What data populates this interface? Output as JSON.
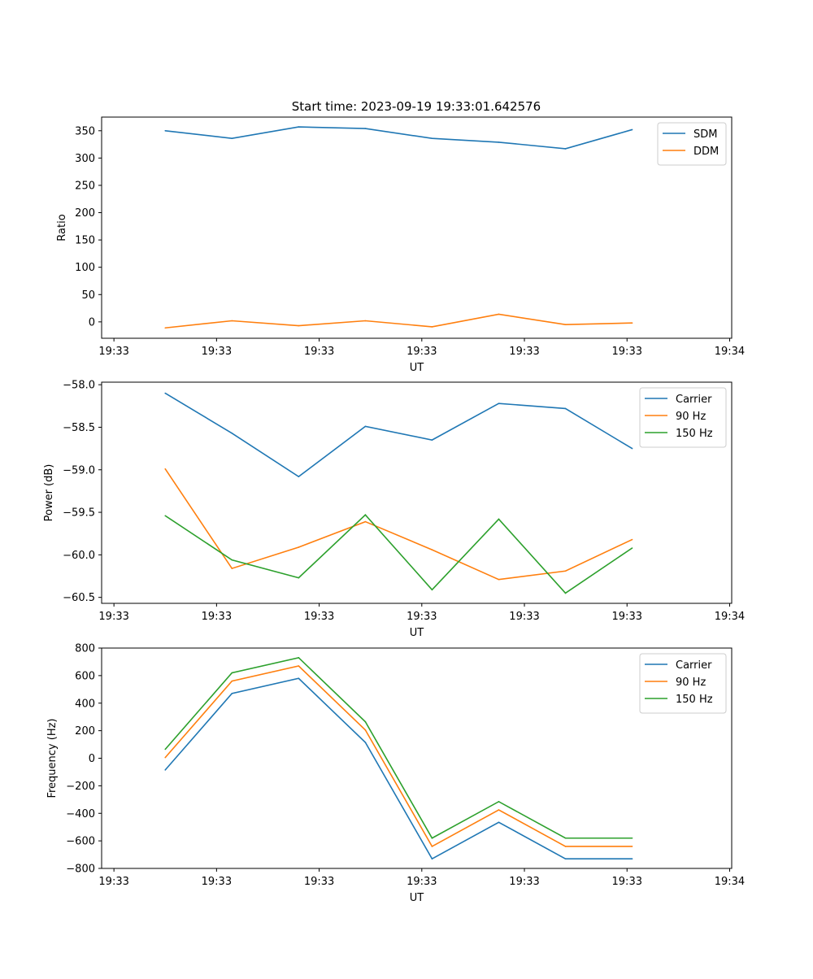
{
  "figure_title": "Start time: 2023-09-19 19:33:01.642576",
  "colors": {
    "blue": "#1f77b4",
    "orange": "#ff7f0e",
    "green": "#2ca02c"
  },
  "chart_data": [
    {
      "type": "line",
      "title": "Start time: 2023-09-19 19:33:01.642576",
      "xlabel": "UT",
      "ylabel": "Ratio",
      "x_ticks": [
        "19:33",
        "19:33",
        "19:33",
        "19:33",
        "19:33",
        "19:33",
        "19:34"
      ],
      "x_tick_values": [
        0,
        1,
        2,
        3,
        4,
        5,
        6
      ],
      "xlim": [
        -0.12,
        6.02
      ],
      "ylim": [
        -30,
        375
      ],
      "y_ticks": [
        0,
        50,
        100,
        150,
        200,
        250,
        300,
        350
      ],
      "legend_position": "top-right",
      "x": [
        0.5,
        1.15,
        1.8,
        2.45,
        3.1,
        3.75,
        4.4,
        5.05
      ],
      "series": [
        {
          "name": "SDM",
          "color": "#1f77b4",
          "values": [
            350,
            336,
            357,
            354,
            336,
            329,
            317,
            352
          ]
        },
        {
          "name": "DDM",
          "color": "#ff7f0e",
          "values": [
            -11,
            2,
            -7,
            2,
            -9,
            14,
            -5,
            -2
          ]
        }
      ]
    },
    {
      "type": "line",
      "title": "",
      "xlabel": "UT",
      "ylabel": "Power (dB)",
      "x_ticks": [
        "19:33",
        "19:33",
        "19:33",
        "19:33",
        "19:33",
        "19:33",
        "19:34"
      ],
      "x_tick_values": [
        0,
        1,
        2,
        3,
        4,
        5,
        6
      ],
      "xlim": [
        -0.12,
        6.02
      ],
      "ylim": [
        -60.57,
        -57.97
      ],
      "y_ticks": [
        -60.5,
        -60.0,
        -59.5,
        -59.0,
        -58.5,
        -58.0
      ],
      "y_tick_labels": [
        "−60.5",
        "−60.0",
        "−59.5",
        "−59.0",
        "−58.5",
        "−58.0"
      ],
      "legend_position": "top-right",
      "x": [
        0.5,
        1.15,
        1.8,
        2.45,
        3.1,
        3.75,
        4.4,
        5.05
      ],
      "series": [
        {
          "name": "Carrier",
          "color": "#1f77b4",
          "values": [
            -58.1,
            -58.57,
            -59.08,
            -58.49,
            -58.65,
            -58.22,
            -58.28,
            -58.75
          ]
        },
        {
          "name": "90 Hz",
          "color": "#ff7f0e",
          "values": [
            -58.99,
            -60.16,
            -59.91,
            -59.61,
            -59.94,
            -60.29,
            -60.19,
            -59.82
          ]
        },
        {
          "name": "150 Hz",
          "color": "#2ca02c",
          "values": [
            -59.54,
            -60.06,
            -60.27,
            -59.53,
            -60.41,
            -59.58,
            -60.45,
            -59.92
          ]
        }
      ]
    },
    {
      "type": "line",
      "title": "",
      "xlabel": "UT",
      "ylabel": "Frequency (Hz)",
      "x_ticks": [
        "19:33",
        "19:33",
        "19:33",
        "19:33",
        "19:33",
        "19:33",
        "19:34"
      ],
      "x_tick_values": [
        0,
        1,
        2,
        3,
        4,
        5,
        6
      ],
      "xlim": [
        -0.12,
        6.02
      ],
      "ylim": [
        -800,
        800
      ],
      "y_ticks": [
        -800,
        -600,
        -400,
        -200,
        0,
        200,
        400,
        600,
        800
      ],
      "y_tick_labels": [
        "−800",
        "−600",
        "−400",
        "−200",
        "0",
        "200",
        "400",
        "600",
        "800"
      ],
      "legend_position": "top-right",
      "x": [
        0.5,
        1.15,
        1.8,
        2.45,
        3.1,
        3.75,
        4.4,
        5.05
      ],
      "series": [
        {
          "name": "Carrier",
          "color": "#1f77b4",
          "values": [
            -85,
            470,
            580,
            115,
            -730,
            -465,
            -730,
            -730
          ]
        },
        {
          "name": "90 Hz",
          "color": "#ff7f0e",
          "values": [
            5,
            560,
            670,
            205,
            -640,
            -375,
            -640,
            -640
          ]
        },
        {
          "name": "150 Hz",
          "color": "#2ca02c",
          "values": [
            65,
            620,
            730,
            265,
            -580,
            -315,
            -580,
            -580
          ]
        }
      ]
    }
  ]
}
